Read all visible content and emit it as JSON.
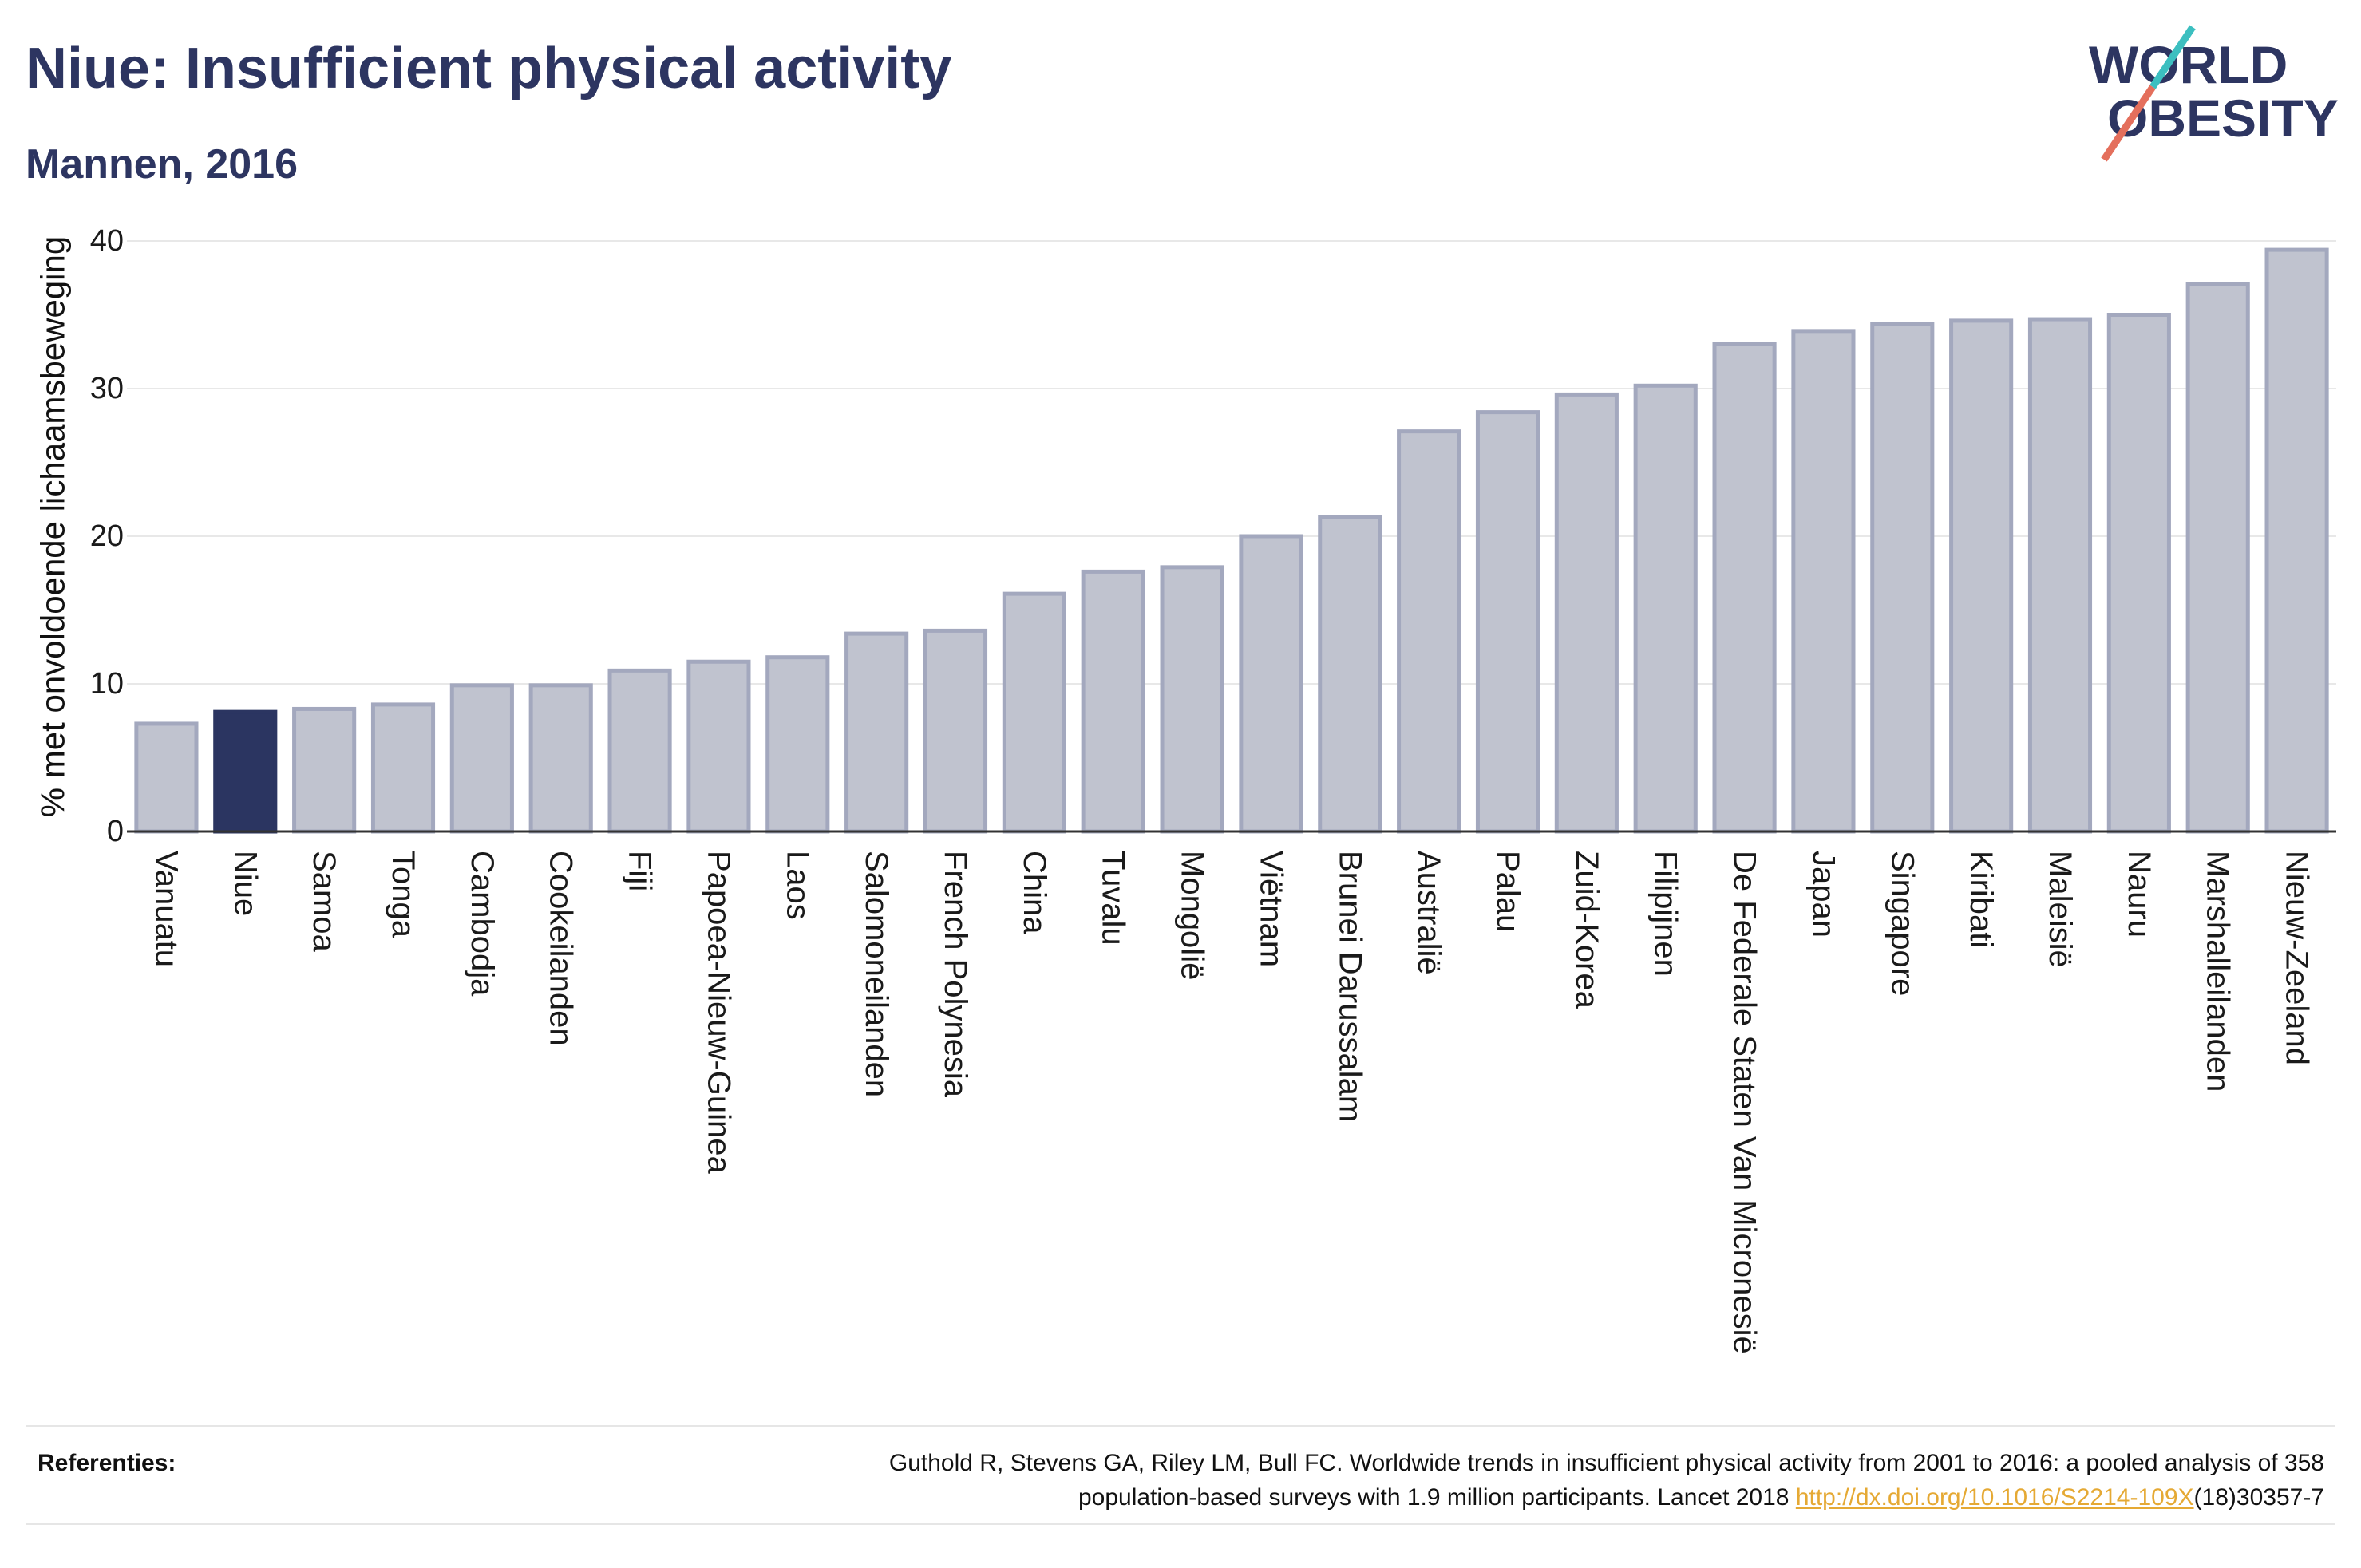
{
  "chart_data": {
    "type": "bar",
    "title": "Niue: Insufficient physical activity",
    "subtitle": "Mannen, 2016",
    "ylabel": "% met onvoldoende lichaamsbeweging",
    "categories": [
      "Vanuatu",
      "Niue",
      "Samoa",
      "Tonga",
      "Cambodja",
      "Cookeilanden",
      "Fiji",
      "Papoea-Nieuw-Guinea",
      "Laos",
      "Salomoneilanden",
      "French Polynesia",
      "China",
      "Tuvalu",
      "Mongolië",
      "Viëtnam",
      "Brunei Darussalam",
      "Australië",
      "Palau",
      "Zuid-Korea",
      "Filipijnen",
      "De Federale Staten Van Micronesië",
      "Japan",
      "Singapore",
      "Kiribati",
      "Maleisië",
      "Nauru",
      "Marshalleilanden",
      "Nieuw-Zeeland"
    ],
    "values": [
      7.3,
      8.1,
      8.3,
      8.6,
      9.9,
      9.9,
      10.9,
      11.5,
      11.8,
      13.4,
      13.6,
      16.1,
      17.6,
      17.9,
      20.0,
      21.3,
      27.1,
      28.4,
      29.6,
      30.2,
      33.0,
      33.9,
      34.4,
      34.6,
      34.7,
      35.0,
      37.1,
      39.4
    ],
    "highlight": "Niue",
    "ylim": [
      0,
      41
    ],
    "yticks": [
      0,
      10,
      20,
      30,
      40
    ],
    "grid": true,
    "colors": {
      "title": "#2d3561",
      "bar": "#c0c3cf",
      "bar_border": "#a3a8be",
      "highlight": "#2b3561",
      "grid": "#e8e8e8",
      "axis": "#333333",
      "text": "#1a1a1a"
    }
  },
  "logo": {
    "line1": "WORLD",
    "line2": "OBESITY",
    "colors": {
      "text": "#2d3561",
      "slash_top": "#3cbfc0",
      "slash_bottom": "#e46f5c"
    }
  },
  "footer": {
    "references_label": "Referenties:",
    "citation_line1": "Guthold R, Stevens GA, Riley LM, Bull FC. Worldwide trends in insufficient physical activity from 2001 to 2016: a pooled analysis of 358",
    "citation_line2": "population-based surveys with 1.9 million participants. Lancet 2018",
    "citation_link": "http://dx.doi.org/10.1016/S2214-109X",
    "citation_suffix": "(18)30357-7",
    "link_color": "#e5a934"
  }
}
